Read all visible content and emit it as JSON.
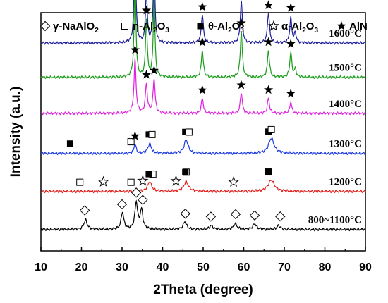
{
  "chart_data": {
    "type": "line",
    "xlabel": "2Theta (degree)",
    "ylabel": "Intensity (a.u.)",
    "xlim": [
      10,
      90
    ],
    "xticks": [
      10,
      20,
      30,
      40,
      50,
      60,
      70,
      80,
      90
    ],
    "grid": false,
    "legend": {
      "placement": "top",
      "entries": [
        {
          "symbol": "diamond-open",
          "label": "γ-NaAlO",
          "sub": "2",
          "tail": ""
        },
        {
          "symbol": "square-open",
          "label": "η-Al",
          "sub": "2",
          "mid": "O",
          "sub2": "3"
        },
        {
          "symbol": "square-filled",
          "label": "θ-Al",
          "sub": "2",
          "mid": "O",
          "sub2": "3"
        },
        {
          "symbol": "star-open",
          "label": "α-Al",
          "sub": "2",
          "mid": "O",
          "sub2": "3"
        },
        {
          "symbol": "star-filled",
          "label": "AlN",
          "sub": "",
          "mid": "",
          "sub2": ""
        }
      ]
    },
    "series": [
      {
        "label": "1600°C",
        "color": "#1c1c9c",
        "baseline": 1.1,
        "peaks": [
          [
            33.2,
            0.55,
            0.25
          ],
          [
            36.0,
            0.28,
            0.25
          ],
          [
            37.9,
            0.42,
            0.25
          ],
          [
            49.8,
            0.15,
            0.3
          ],
          [
            59.4,
            0.22,
            0.3
          ],
          [
            66.1,
            0.16,
            0.3
          ],
          [
            71.6,
            0.13,
            0.3
          ],
          [
            72.7,
            0.05,
            0.3
          ]
        ],
        "markers": [
          {
            "symbol": "star-filled",
            "x": [
              33.2,
              36.0,
              37.9,
              49.8,
              59.4,
              66.1,
              71.6
            ]
          }
        ]
      },
      {
        "label": "1500°C",
        "color": "#1b9c1b",
        "baseline": 0.92,
        "peaks": [
          [
            33.2,
            0.55,
            0.25
          ],
          [
            36.0,
            0.3,
            0.25
          ],
          [
            37.9,
            0.42,
            0.25
          ],
          [
            49.8,
            0.14,
            0.3
          ],
          [
            59.4,
            0.24,
            0.3
          ],
          [
            66.1,
            0.14,
            0.3
          ],
          [
            71.6,
            0.13,
            0.3
          ],
          [
            72.7,
            0.04,
            0.3
          ]
        ],
        "markers": [
          {
            "symbol": "star-filled",
            "x": [
              33.2,
              36.0,
              37.9,
              49.8,
              59.4,
              66.1,
              71.6
            ]
          }
        ]
      },
      {
        "label": "1400°C",
        "color": "#e020e0",
        "baseline": 0.73,
        "peaks": [
          [
            33.2,
            0.28,
            0.3
          ],
          [
            36.0,
            0.15,
            0.3
          ],
          [
            37.9,
            0.18,
            0.3
          ],
          [
            49.8,
            0.08,
            0.3
          ],
          [
            59.4,
            0.11,
            0.3
          ],
          [
            66.1,
            0.08,
            0.3
          ],
          [
            71.6,
            0.06,
            0.3
          ]
        ],
        "markers": [
          {
            "symbol": "star-filled",
            "x": [
              33.2,
              36.0,
              37.9,
              49.8,
              59.4,
              66.1,
              71.6
            ]
          }
        ]
      },
      {
        "label": "1300°C",
        "color": "#1c3ce0",
        "baseline": 0.52,
        "peaks": [
          [
            33.2,
            0.05,
            0.3
          ],
          [
            36.8,
            0.05,
            0.5
          ],
          [
            45.8,
            0.07,
            0.6
          ],
          [
            66.8,
            0.08,
            0.8
          ]
        ],
        "markers": [
          {
            "symbol": "square-filled",
            "x": [
              17.2,
              36.6,
              45.6,
              66.1
            ]
          },
          {
            "symbol": "square-open",
            "x": [
              32.2,
              37.4,
              46.5,
              66.8
            ]
          },
          {
            "symbol": "star-filled",
            "x": [
              33.2
            ]
          }
        ]
      },
      {
        "label": "1200°C",
        "color": "#e0201c",
        "baseline": 0.32,
        "peaks": [
          [
            36.8,
            0.05,
            0.6
          ],
          [
            45.8,
            0.05,
            0.7
          ],
          [
            66.8,
            0.06,
            0.9
          ]
        ],
        "markers": [
          {
            "symbol": "square-open",
            "x": [
              19.6,
              32.2,
              37.6,
              45.8,
              66.1
            ]
          },
          {
            "symbol": "star-open",
            "x": [
              25.4,
              35.1,
              43.3,
              57.5
            ]
          },
          {
            "symbol": "square-filled",
            "x": [
              36.6,
              45.6,
              66.1
            ]
          }
        ]
      },
      {
        "label": "800~1100°C",
        "color": "#000000",
        "baseline": 0.12,
        "peaks": [
          [
            21.0,
            0.05,
            0.5
          ],
          [
            30.1,
            0.09,
            0.4
          ],
          [
            33.5,
            0.14,
            0.4
          ],
          [
            34.8,
            0.1,
            0.4
          ],
          [
            45.5,
            0.04,
            0.5
          ],
          [
            52.0,
            0.02,
            0.5
          ],
          [
            57.9,
            0.03,
            0.5
          ],
          [
            62.7,
            0.03,
            0.5
          ],
          [
            68.6,
            0.02,
            0.5
          ]
        ],
        "markers": [
          {
            "symbol": "diamond-open",
            "x": [
              20.8,
              30.0,
              33.5,
              35.1,
              45.6,
              51.9,
              58.0,
              62.7,
              69.0
            ]
          }
        ]
      }
    ]
  }
}
